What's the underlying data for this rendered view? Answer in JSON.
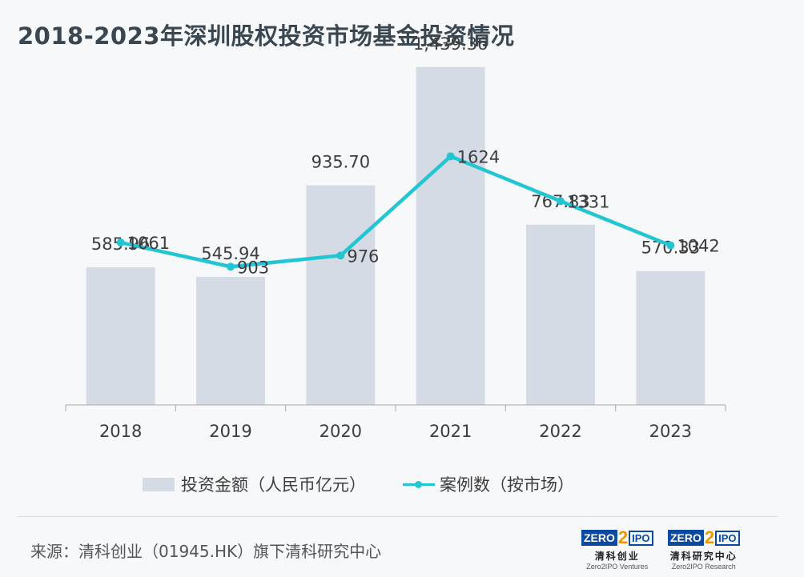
{
  "title": "2018-2023年深圳股权投资市场基金投资情况",
  "colors": {
    "bar": "#d5dbe4",
    "line": "#22c6d3",
    "title": "#3a4750"
  },
  "chart_data": {
    "type": "bar+line",
    "categories": [
      "2018",
      "2019",
      "2020",
      "2021",
      "2022",
      "2023"
    ],
    "series": [
      {
        "name": "投资金额（人民币亿元）",
        "type": "bar",
        "values": [
          585.96,
          545.94,
          935.7,
          1439.36,
          767.83,
          570.33
        ],
        "labels": [
          "585.96",
          "545.94",
          "935.70",
          "1,439.36",
          "767.83",
          "570.33"
        ]
      },
      {
        "name": "案例数（按市场）",
        "type": "line",
        "values": [
          1061,
          903,
          976,
          1624,
          1331,
          1042
        ],
        "labels": [
          "1061",
          "903",
          "976",
          "1624",
          "1331",
          "1042"
        ]
      }
    ],
    "bar_axis": {
      "ylim": [
        0,
        1500
      ]
    },
    "line_axis": {
      "ylim": [
        0,
        2300
      ]
    },
    "legend_position": "bottom",
    "grid": false
  },
  "legend": {
    "bar_label": "投资金额（人民币亿元）",
    "line_label": "案例数（按市场）"
  },
  "source": "来源：清科创业（01945.HK）旗下清科研究中心",
  "logos": {
    "left": {
      "box": "ZERO",
      "two": "2",
      "ipo": "IPO",
      "cn": "清科创业",
      "en": "Zero2IPO Ventures"
    },
    "right": {
      "box": "ZERO",
      "two": "2",
      "ipo": "IPO",
      "cn": "清科研究中心",
      "en": "Zero2IPO Research"
    }
  }
}
